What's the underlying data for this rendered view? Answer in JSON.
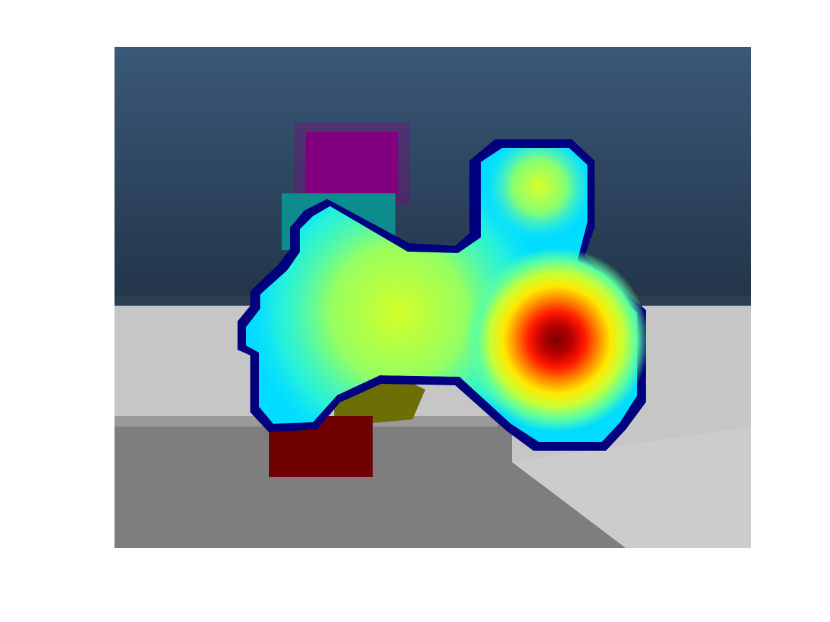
{
  "figure": {
    "background": "#ffffff",
    "overlay_colormap": "jet",
    "scene_colors": {
      "sky_top": "#3a5878",
      "sky_bottom": "#223448",
      "floor_light": "#c6c6c6",
      "floor_dark": "#7c7c7c",
      "purple_block": "#800080",
      "teal_block": "#0c8c8c",
      "olive_block": "#6e6e06",
      "maroon_block": "#700000"
    }
  }
}
